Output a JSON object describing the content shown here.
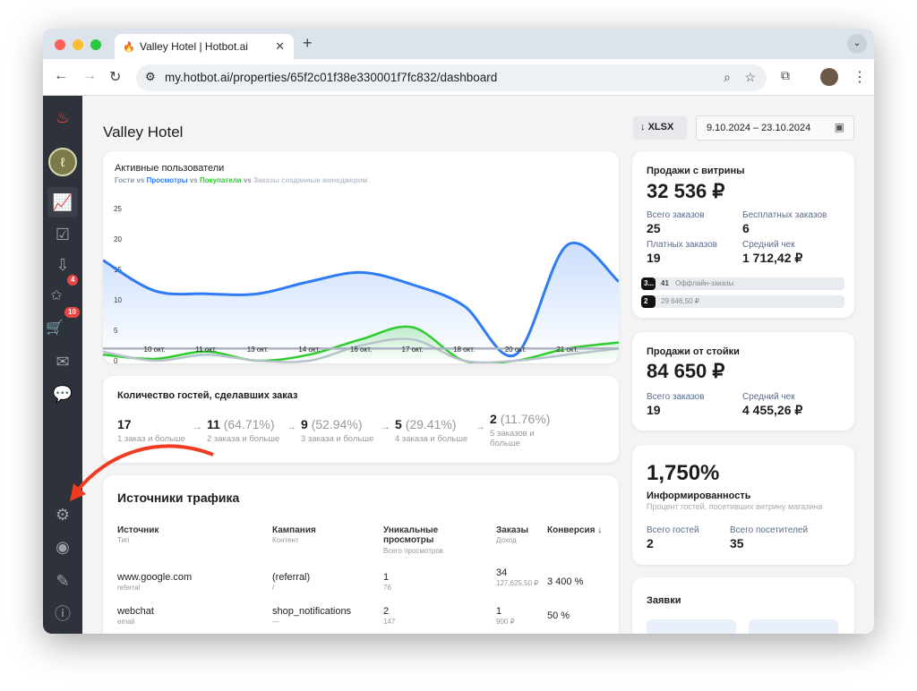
{
  "browser": {
    "tab_title": "Valley Hotel | Hotbot.ai",
    "url": "my.hotbot.ai/properties/65f2c01f38e330001f7fc832/dashboard"
  },
  "sidebar": {
    "items": [
      {
        "icon": "flame-icon"
      },
      {
        "icon": "avatar"
      },
      {
        "icon": "analytics-icon",
        "active": true
      },
      {
        "icon": "check-icon"
      },
      {
        "icon": "inbox-download-icon"
      },
      {
        "icon": "inbox-star-icon",
        "badge": "4"
      },
      {
        "icon": "cart-icon",
        "badge": "10"
      },
      {
        "icon": "mail-icon"
      },
      {
        "icon": "chat-icon"
      },
      {
        "icon": "gear-icon"
      },
      {
        "icon": "user-icon"
      },
      {
        "icon": "pencil-icon"
      },
      {
        "icon": "help-icon"
      }
    ]
  },
  "page": {
    "title": "Valley Hotel",
    "export_label": "XLSX",
    "date_range": "9.10.2024 – 23.10.2024"
  },
  "chart_data": {
    "type": "line",
    "title": "Активные пользователи",
    "legend": [
      {
        "name": "Гости",
        "color": "#8a96a8"
      },
      {
        "sep": "vs"
      },
      {
        "name": "Просмотры",
        "color": "#2f7bf5"
      },
      {
        "sep": "vs"
      },
      {
        "name": "Покупатели",
        "color": "#2ecc2e"
      },
      {
        "sep": "vs"
      },
      {
        "name": "Заказы созданные менеджером",
        "color": "#b8c2cc"
      }
    ],
    "categories": [
      "",
      "10 окт.",
      "11 окт.",
      "13 окт.",
      "14 окт.",
      "16 окт.",
      "17 окт.",
      "18 окт.",
      "20 окт.",
      "21 окт.",
      ""
    ],
    "ylim": [
      0,
      25
    ],
    "yticks": [
      0,
      5,
      10,
      15,
      20,
      25
    ],
    "series": [
      {
        "name": "Гости",
        "color": "#a9b4c0",
        "values": [
          2,
          2,
          2,
          2,
          2,
          2,
          2,
          2,
          2,
          2,
          2
        ]
      },
      {
        "name": "Просмотры",
        "color": "#2f7bf5",
        "values": [
          16.5,
          11.5,
          11,
          11,
          13,
          14.5,
          12.5,
          9,
          1,
          19,
          13
        ]
      },
      {
        "name": "Покупатели",
        "color": "#2ecc2e",
        "values": [
          1,
          0.3,
          1.5,
          0,
          1,
          3.5,
          5.5,
          0,
          0,
          2,
          3
        ]
      },
      {
        "name": "Заказы созданные менеджером",
        "color": "#b8c2cc",
        "values": [
          1.5,
          0,
          1,
          0,
          0,
          2.5,
          3.5,
          0,
          0,
          1,
          2
        ]
      }
    ]
  },
  "funnel": {
    "title": "Количество гостей, сделавших заказ",
    "steps": [
      {
        "value": "17",
        "pct": "",
        "label": "1 заказ и больше"
      },
      {
        "value": "11",
        "pct": "(64.71%)",
        "label": "2 заказа и больше"
      },
      {
        "value": "9",
        "pct": "(52.94%)",
        "label": "3 заказа и больше"
      },
      {
        "value": "5",
        "pct": "(29.41%)",
        "label": "4 заказа и больше"
      },
      {
        "value": "2",
        "pct": "(11.76%)",
        "label": "5 заказов и больше"
      }
    ]
  },
  "traffic": {
    "title": "Источники трафика",
    "headers": [
      {
        "t": "Источник",
        "s": "Тип"
      },
      {
        "t": "Кампания",
        "s": "Контент"
      },
      {
        "t": "Уникальные просмотры",
        "s": "Всего просмотров"
      },
      {
        "t": "Заказы",
        "s": "Доход"
      },
      {
        "t": "Конверсия ↓",
        "s": ""
      }
    ],
    "rows": [
      {
        "source": "www.google.com",
        "type": "referral",
        "campaign": "(referral)",
        "content": "/",
        "unique": "1",
        "total": "76",
        "orders": "34",
        "revenue": "127,625.50 ₽",
        "conversion": "3 400 %"
      },
      {
        "source": "webchat",
        "type": "email",
        "campaign": "shop_notifications",
        "content": "—",
        "unique": "2",
        "total": "147",
        "orders": "1",
        "revenue": "900 ₽",
        "conversion": "50 %"
      }
    ]
  },
  "storefront": {
    "title": "Продажи с витрины",
    "amount": "32 536 ₽",
    "stats": [
      {
        "label": "Всего заказов",
        "value": "25"
      },
      {
        "label": "Бесплатных заказов",
        "value": "6"
      },
      {
        "label": "Платных заказов",
        "value": "19"
      },
      {
        "label": "Средний чек",
        "value": "1 712,42 ₽"
      }
    ],
    "bars": [
      {
        "tag": "3...",
        "count": "41",
        "text": "Оффлайн-заказы"
      },
      {
        "tag": "2 ...",
        "count": "",
        "text": "29 646,50 ₽"
      }
    ]
  },
  "counter": {
    "title": "Продажи от стойки",
    "amount": "84 650 ₽",
    "stats": [
      {
        "label": "Всего заказов",
        "value": "19"
      },
      {
        "label": "Средний чек",
        "value": "4 455,26 ₽"
      }
    ]
  },
  "awareness": {
    "value": "1,750%",
    "title": "Информированность",
    "subtitle": "Процент гостей, посетивших витрину магазина",
    "stats": [
      {
        "label": "Всего гостей",
        "value": "2"
      },
      {
        "label": "Всего посетителей",
        "value": "35"
      }
    ]
  },
  "requests": {
    "title": "Заявки"
  }
}
